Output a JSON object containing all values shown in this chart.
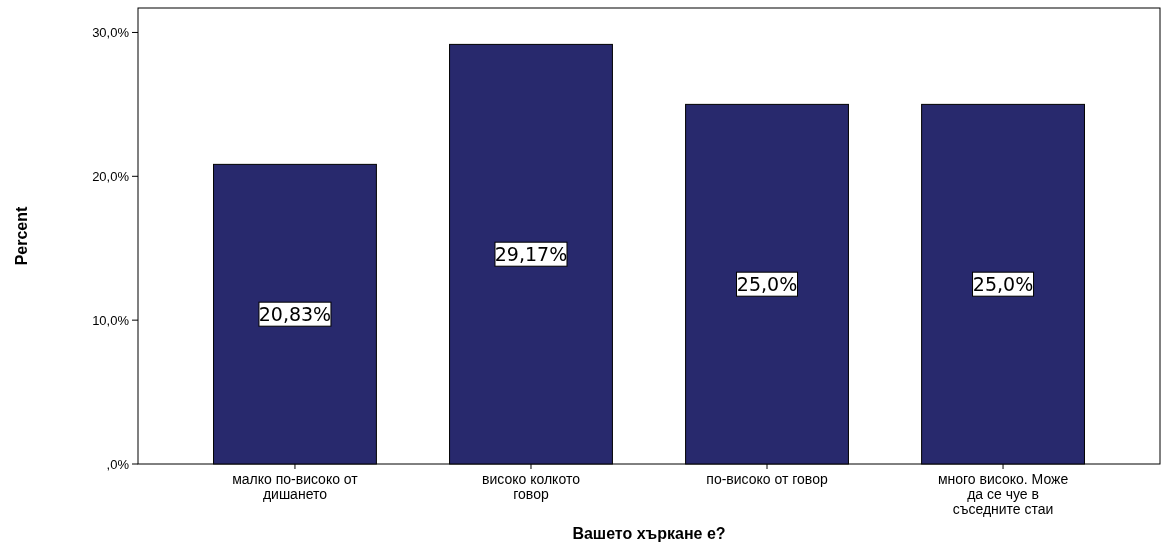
{
  "chart_data": {
    "type": "bar",
    "xlabel": "Вашето хъркане е?",
    "ylabel": "Percent",
    "categories": [
      "малко по-високо от дишането",
      "високо колкото говор",
      "по-високо от говор",
      "много високо. Може да се чуе в съседните стаи"
    ],
    "values": [
      20.83,
      29.17,
      25.0,
      25.0
    ],
    "value_labels": [
      "20,83%",
      "29,17%",
      "25,0%",
      "25,0%"
    ],
    "color": "#28296d",
    "ylim": [
      0,
      31.7
    ],
    "yticks": [
      {
        "value": 0,
        "label": ",0%"
      },
      {
        "value": 10,
        "label": "10,0%"
      },
      {
        "value": 20,
        "label": "20,0%"
      },
      {
        "value": 30,
        "label": "30,0%"
      }
    ],
    "grid": false
  }
}
